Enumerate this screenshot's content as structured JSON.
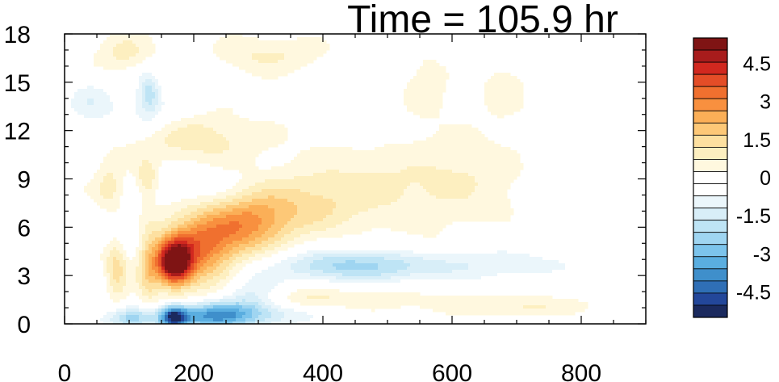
{
  "chart_data": {
    "type": "heatmap",
    "title": "Time = 105.9 hr",
    "xlabel": "",
    "ylabel": "",
    "xlim": [
      0,
      900
    ],
    "ylim": [
      0,
      18
    ],
    "x_ticks": [
      "0",
      "200",
      "400",
      "600",
      "800"
    ],
    "y_ticks": [
      "0",
      "3",
      "6",
      "9",
      "12",
      "15",
      "18"
    ],
    "colorbar": {
      "range": [
        -5.5,
        5.5
      ],
      "step": 0.5,
      "tick_labels": [
        "4.5",
        "3",
        "1.5",
        "0",
        "-1.5",
        "-3",
        "-4.5"
      ],
      "colors": [
        "#1b2a5e",
        "#23479a",
        "#2f6fb6",
        "#3f8fcb",
        "#5aaee0",
        "#7cc4ec",
        "#9fd5f1",
        "#bee4f5",
        "#d8eef8",
        "#ebf6fb",
        "#ffffff",
        "#ffffff",
        "#fff8df",
        "#fdefc0",
        "#fde0a0",
        "#fdc877",
        "#fbaf57",
        "#f8903f",
        "#f0702f",
        "#e44d27",
        "#d1281f",
        "#a81c1c",
        "#7f1414"
      ]
    },
    "features": [
      {
        "x": 170,
        "y": 3.8,
        "sx": 18,
        "sy": 0.9,
        "v": 5.5
      },
      {
        "x": 200,
        "y": 4.5,
        "sx": 40,
        "sy": 1.6,
        "v": 2.6
      },
      {
        "x": 250,
        "y": 5.6,
        "sx": 45,
        "sy": 1.3,
        "v": 1.8
      },
      {
        "x": 300,
        "y": 6.5,
        "sx": 40,
        "sy": 1.2,
        "v": 1.6
      },
      {
        "x": 370,
        "y": 7.2,
        "sx": 60,
        "sy": 1.3,
        "v": 1.0
      },
      {
        "x": 470,
        "y": 8.5,
        "sx": 90,
        "sy": 1.6,
        "v": 0.8
      },
      {
        "x": 620,
        "y": 9.0,
        "sx": 60,
        "sy": 2.0,
        "v": 0.6
      },
      {
        "x": 200,
        "y": 11.5,
        "sx": 70,
        "sy": 1.0,
        "v": 1.1
      },
      {
        "x": 90,
        "y": 16.8,
        "sx": 30,
        "sy": 0.8,
        "v": 0.9
      },
      {
        "x": 290,
        "y": 16.6,
        "sx": 40,
        "sy": 0.8,
        "v": 0.6
      },
      {
        "x": 350,
        "y": 16.8,
        "sx": 40,
        "sy": 0.7,
        "v": 0.5
      },
      {
        "x": 560,
        "y": 14.8,
        "sx": 25,
        "sy": 1.5,
        "v": 0.5
      },
      {
        "x": 680,
        "y": 14.5,
        "sx": 25,
        "sy": 1.2,
        "v": 0.5
      },
      {
        "x": 70,
        "y": 8.5,
        "sx": 15,
        "sy": 1.2,
        "v": 1.0
      },
      {
        "x": 128,
        "y": 8.9,
        "sx": 12,
        "sy": 0.8,
        "v": 1.4
      },
      {
        "x": 80,
        "y": 3.6,
        "sx": 12,
        "sy": 1.5,
        "v": 1.5
      },
      {
        "x": 130,
        "y": 3.6,
        "sx": 12,
        "sy": 1.8,
        "v": 1.4
      },
      {
        "x": 560,
        "y": 4.8,
        "sx": 40,
        "sy": 0.6,
        "v": 0.5
      },
      {
        "x": 500,
        "y": 1.6,
        "sx": 90,
        "sy": 0.5,
        "v": 0.5
      },
      {
        "x": 700,
        "y": 1.1,
        "sx": 80,
        "sy": 0.4,
        "v": 0.8
      },
      {
        "x": 380,
        "y": 1.5,
        "sx": 40,
        "sy": 0.5,
        "v": 0.9
      },
      {
        "x": 130,
        "y": 14.4,
        "sx": 12,
        "sy": 0.9,
        "v": -1.8
      },
      {
        "x": 40,
        "y": 13.7,
        "sx": 30,
        "sy": 1.2,
        "v": -1.0
      },
      {
        "x": 130,
        "y": 13.0,
        "sx": 40,
        "sy": 1.0,
        "v": -0.8
      },
      {
        "x": 90,
        "y": 5.8,
        "sx": 25,
        "sy": 1.0,
        "v": -0.7
      },
      {
        "x": 190,
        "y": 8.5,
        "sx": 50,
        "sy": 0.8,
        "v": -0.6
      },
      {
        "x": 230,
        "y": 0.5,
        "sx": 45,
        "sy": 0.6,
        "v": -3.8
      },
      {
        "x": 170,
        "y": 0.4,
        "sx": 15,
        "sy": 0.5,
        "v": -4.5
      },
      {
        "x": 105,
        "y": 0.3,
        "sx": 30,
        "sy": 0.5,
        "v": -2.3
      },
      {
        "x": 330,
        "y": 0.6,
        "sx": 60,
        "sy": 0.6,
        "v": -1.2
      },
      {
        "x": 290,
        "y": 2.0,
        "sx": 30,
        "sy": 0.9,
        "v": -1.2
      },
      {
        "x": 430,
        "y": 3.6,
        "sx": 80,
        "sy": 0.7,
        "v": -2.0
      },
      {
        "x": 580,
        "y": 3.7,
        "sx": 110,
        "sy": 0.9,
        "v": -1.0
      },
      {
        "x": 760,
        "y": 3.7,
        "sx": 110,
        "sy": 0.7,
        "v": -0.55
      },
      {
        "x": 40,
        "y": 1.5,
        "sx": 20,
        "sy": 1.0,
        "v": -0.6
      }
    ]
  }
}
